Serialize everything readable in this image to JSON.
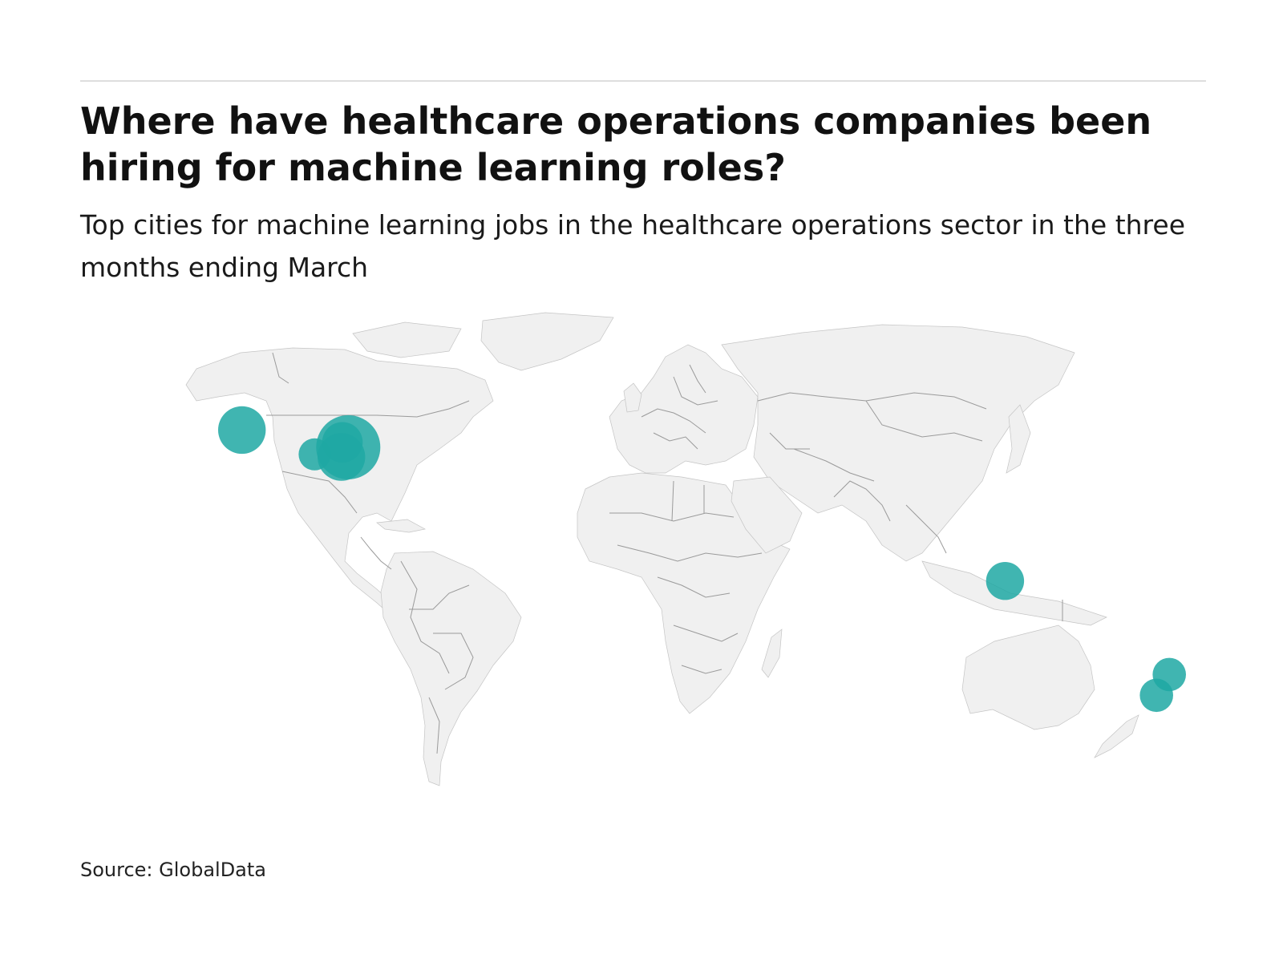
{
  "chart": {
    "title": "Where have healthcare operations companies been hiring for machine learning roles?",
    "subtitle": "Top cities for machine learning jobs in the healthcare operations sector in the three months ending March",
    "source": "Source: GlobalData"
  },
  "colors": {
    "bubble": "#1fa8a3",
    "land": "#f0f0f0",
    "border": "#9a9a9a",
    "rule": "#dedede"
  },
  "chart_data": {
    "type": "bubble-map",
    "title": "Where have healthcare operations companies been hiring for machine learning roles?",
    "subtitle": "Top cities for machine learning jobs in the healthcare operations sector in the three months ending March",
    "size_scale": "relative job count",
    "points": [
      {
        "lon": -116.5,
        "lat": 47.8,
        "relative_size": 0.55
      },
      {
        "lon": -85.8,
        "lat": 42.5,
        "relative_size": 1.0
      },
      {
        "lon": -87.5,
        "lat": 44.0,
        "relative_size": 0.4
      },
      {
        "lon": -87.8,
        "lat": 39.5,
        "relative_size": 0.55
      },
      {
        "lon": -95.5,
        "lat": 40.3,
        "relative_size": 0.25
      },
      {
        "lon": 103.8,
        "lat": 1.3,
        "relative_size": 0.35
      },
      {
        "lon": 151.2,
        "lat": -27.5,
        "relative_size": 0.27
      },
      {
        "lon": 147.5,
        "lat": -33.9,
        "relative_size": 0.27
      }
    ]
  }
}
